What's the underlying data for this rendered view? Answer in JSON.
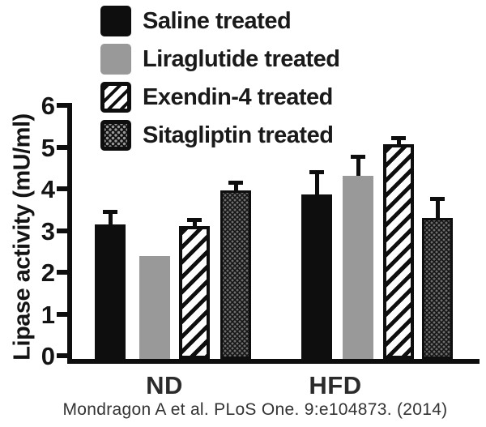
{
  "figure": {
    "citation": "Mondragon A et al. PLoS One. 9:e104873. (2014)",
    "background": "#ffffff"
  },
  "chart_data": {
    "type": "bar",
    "title": "",
    "xlabel": "",
    "ylabel": "Lipase activity (mU/ml)",
    "ylim": [
      0,
      6
    ],
    "yticks": [
      0,
      1,
      2,
      3,
      4,
      5,
      6
    ],
    "grid": false,
    "legend_position": "top-left",
    "categories": [
      "ND",
      "HFD"
    ],
    "series": [
      {
        "name": "Saline treated",
        "pattern": "solid-black",
        "color": "#0e0e0e",
        "values": [
          3.2,
          3.9
        ],
        "errors": [
          0.3,
          0.55
        ]
      },
      {
        "name": "Liraglutide treated",
        "pattern": "solid-gray",
        "color": "#999999",
        "values": [
          2.45,
          4.35
        ],
        "errors": [
          null,
          0.45
        ]
      },
      {
        "name": "Exendin-4 treated",
        "pattern": "diagonal-hatch",
        "color": "#0e0e0e",
        "values": [
          3.15,
          5.1
        ],
        "errors": [
          0.15,
          0.15
        ]
      },
      {
        "name": "Sitagliptin treated",
        "pattern": "dot-grid",
        "color": "#141414",
        "values": [
          4.0,
          3.35
        ],
        "errors": [
          0.2,
          0.45
        ]
      }
    ]
  }
}
